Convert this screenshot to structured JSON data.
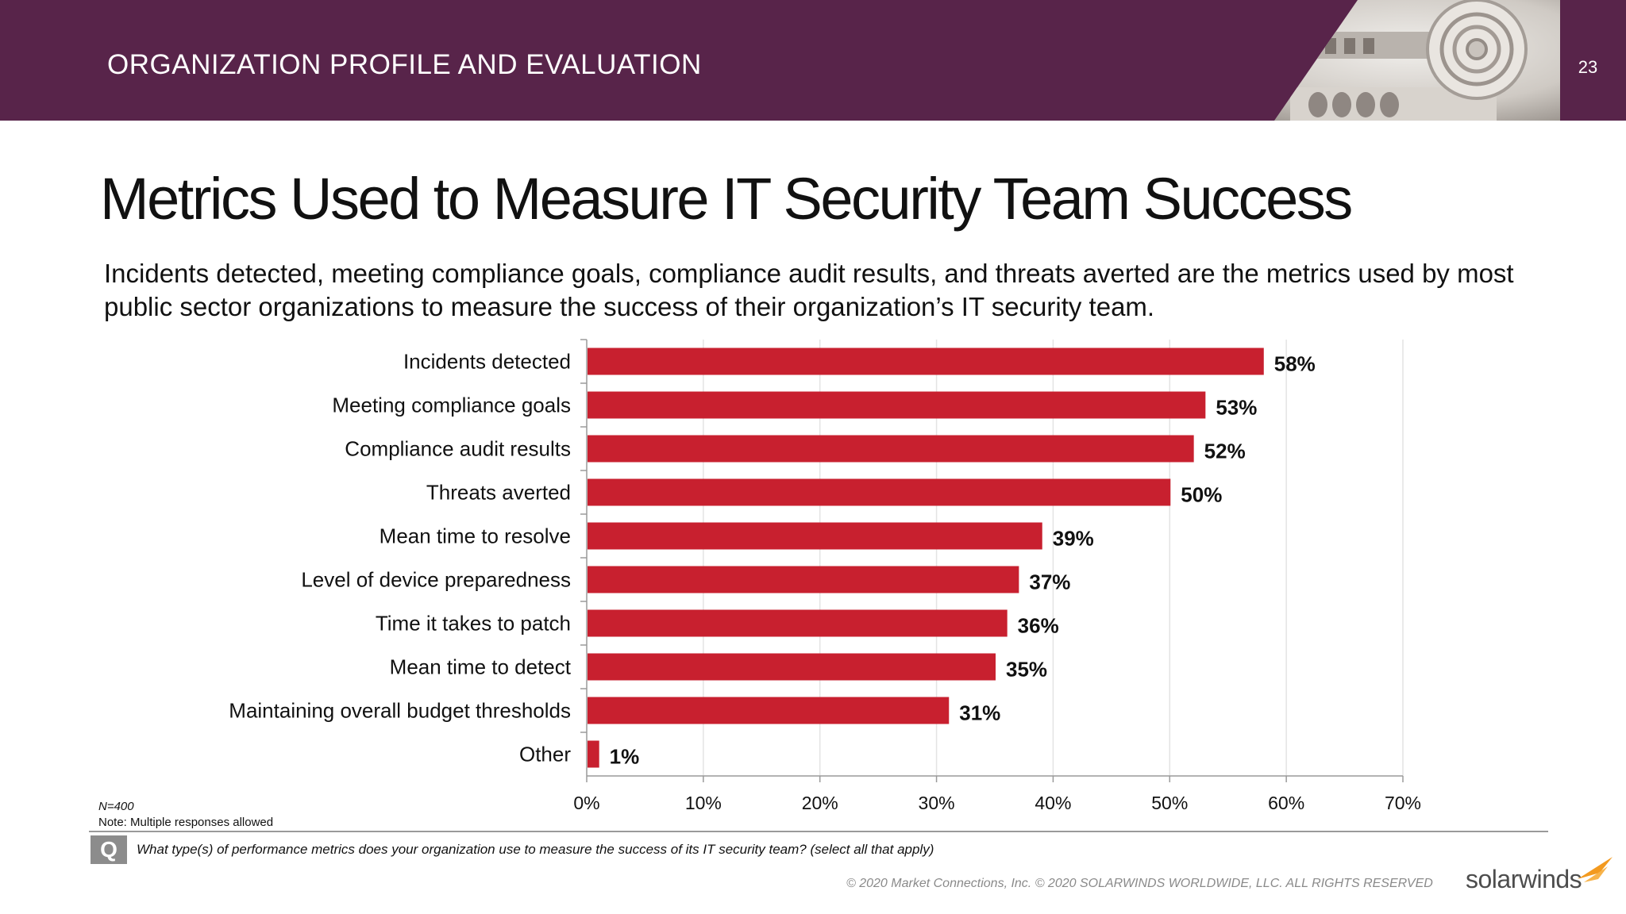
{
  "header": {
    "section_title": "ORGANIZATION PROFILE AND EVALUATION",
    "page_number": "23"
  },
  "title": "Metrics Used to Measure IT Security Team Success",
  "subtitle": "Incidents detected, meeting compliance goals, compliance audit results, and threats averted are the metrics used by most public sector organizations to measure the success of their organization’s IT security team.",
  "chart_data": {
    "type": "bar",
    "orientation": "horizontal",
    "categories": [
      "Incidents detected",
      "Meeting compliance goals",
      "Compliance audit results",
      "Threats averted",
      "Mean time to resolve",
      "Level of device preparedness",
      "Time it takes to patch",
      "Mean time to detect",
      "Maintaining overall budget thresholds",
      "Other"
    ],
    "values": [
      58,
      53,
      52,
      50,
      39,
      37,
      36,
      35,
      31,
      1
    ],
    "value_labels": [
      "58%",
      "53%",
      "52%",
      "50%",
      "39%",
      "37%",
      "36%",
      "35%",
      "31%",
      "1%"
    ],
    "x_ticks": [
      "0%",
      "10%",
      "20%",
      "30%",
      "40%",
      "50%",
      "60%",
      "70%"
    ],
    "xlim": [
      0,
      70
    ],
    "grid": true,
    "bar_color": "#c8202f"
  },
  "footnotes": {
    "n": "N=400",
    "note": "Note: Multiple responses allowed"
  },
  "question": {
    "icon": "Q",
    "text": "What type(s) of performance metrics does your organization use to measure the success of its IT security team? (select all that apply)"
  },
  "copyright": "© 2020 Market Connections, Inc. © 2020 SOLARWINDS WORLDWIDE, LLC. ALL RIGHTS RESERVED",
  "brand": "solarwinds",
  "colors": {
    "header_band": "#58244a",
    "bar": "#c8202f",
    "brand_accent": "#f39a1f"
  }
}
